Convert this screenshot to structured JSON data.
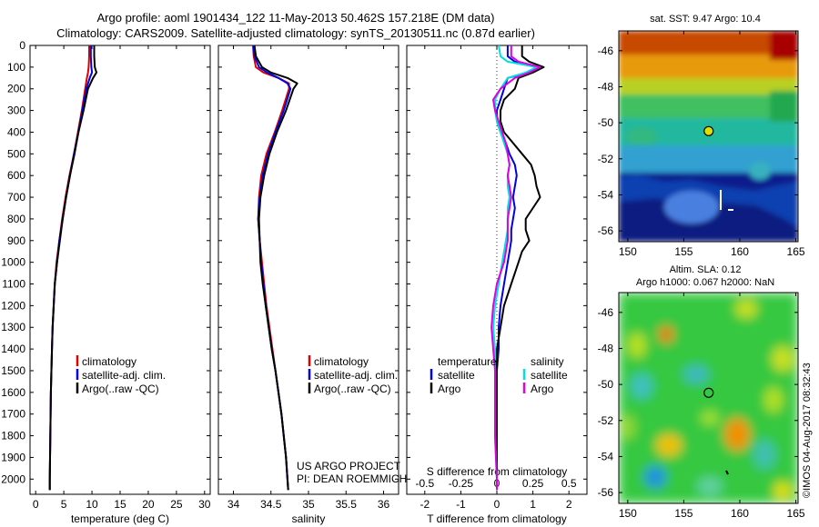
{
  "header": {
    "line1": "Argo profile: aoml 1901434_122 11-May-2013 50.462S 157.218E (DM data)",
    "line2": "Climatology: CARS2009. Satellite-adjusted climatology: synTS_20130511.nc (0.87d earlier)"
  },
  "colors": {
    "climatology": "#e00000",
    "satellite": "#0000e0",
    "argo": "#000000",
    "salinity_satellite": "#00e0e0",
    "salinity_argo": "#e000e0"
  },
  "legend": {
    "climatology": "climatology",
    "satellite_adj": "satellite-adj. clim.",
    "argo": "Argo(..raw -QC)",
    "temperature_head": "temperature",
    "salinity_head": "salinity",
    "satellite": "satellite",
    "argo_short": "Argo"
  },
  "credits": {
    "line1": "US ARGO PROJECT",
    "line2": "PI: DEAN ROEMMICH"
  },
  "maps": {
    "sst_title": "sat. SST: 9.47 Argo: 10.4",
    "sla_title1": "Altim. SLA: 0.12",
    "sla_title2": "Argo h1000: 0.067 h2000: NaN",
    "stamp": "©IMOS 04-Aug-2017 08:32:43",
    "lat_ticks": [
      "-46",
      "-48",
      "-50",
      "-52",
      "-54",
      "-56"
    ],
    "lon_ticks": [
      "150",
      "155",
      "160",
      "165"
    ],
    "float_position": {
      "lon": 157.218,
      "lat": -50.462
    }
  },
  "chart_data": [
    {
      "type": "line",
      "id": "temperature",
      "xlabel": "temperature (deg C)",
      "ylabel": "",
      "xlim": [
        -1,
        31
      ],
      "ylim": [
        2070,
        0
      ],
      "xticks": [
        "0",
        "5",
        "10",
        "15",
        "20",
        "25",
        "30"
      ],
      "yticks": [
        "0",
        "100",
        "200",
        "300",
        "400",
        "500",
        "600",
        "700",
        "800",
        "900",
        "1000",
        "1100",
        "1200",
        "1300",
        "1400",
        "1500",
        "1600",
        "1700",
        "1800",
        "1900",
        "2000"
      ],
      "depth": [
        0,
        50,
        100,
        125,
        150,
        200,
        300,
        400,
        500,
        600,
        700,
        800,
        900,
        1000,
        1100,
        1200,
        1300,
        1400,
        1600,
        1800,
        2000,
        2050
      ],
      "series": [
        {
          "name": "climatology",
          "color": "#e00000",
          "values": [
            9.5,
            9.5,
            9.4,
            9.3,
            9.1,
            8.8,
            8.2,
            7.5,
            6.8,
            6.0,
            5.3,
            4.7,
            4.2,
            3.7,
            3.4,
            3.2,
            3.0,
            2.9,
            2.7,
            2.6,
            2.5,
            2.5
          ]
        },
        {
          "name": "satellite-adj. clim.",
          "color": "#0000e0",
          "values": [
            9.8,
            9.8,
            9.9,
            10.0,
            9.6,
            9.0,
            8.3,
            7.6,
            6.8,
            6.1,
            5.4,
            4.8,
            4.2,
            3.8,
            3.4,
            3.2,
            3.0,
            2.9,
            2.7,
            2.6,
            2.5,
            2.5
          ]
        },
        {
          "name": "Argo(..raw -QC)",
          "color": "#000000",
          "values": [
            10.4,
            10.4,
            10.5,
            10.8,
            10.2,
            9.3,
            8.5,
            7.6,
            6.9,
            6.1,
            5.4,
            4.8,
            4.3,
            3.8,
            3.4,
            3.2,
            3.0,
            2.9,
            2.7,
            2.6,
            2.5,
            2.5
          ]
        }
      ]
    },
    {
      "type": "line",
      "id": "salinity",
      "xlabel": "salinity",
      "ylabel": "",
      "xlim": [
        33.8,
        36.2
      ],
      "ylim": [
        2070,
        0
      ],
      "xticks": [
        "34",
        "34.5",
        "35",
        "35.5",
        "36"
      ],
      "depth": [
        0,
        50,
        100,
        125,
        150,
        175,
        200,
        300,
        400,
        500,
        600,
        700,
        800,
        900,
        1000,
        1100,
        1200,
        1300,
        1400,
        1500,
        1600,
        1700,
        1800,
        1900,
        2000,
        2050
      ],
      "series": [
        {
          "name": "climatology",
          "color": "#e00000",
          "values": [
            34.26,
            34.27,
            34.3,
            34.4,
            34.6,
            34.74,
            34.74,
            34.65,
            34.55,
            34.44,
            34.37,
            34.34,
            34.33,
            34.35,
            34.38,
            34.41,
            34.44,
            34.48,
            34.52,
            34.56,
            34.6,
            34.64,
            34.67,
            34.7,
            34.72,
            34.73
          ]
        },
        {
          "name": "satellite-adj. clim.",
          "color": "#0000e0",
          "values": [
            34.27,
            34.28,
            34.34,
            34.45,
            34.6,
            34.72,
            34.76,
            34.67,
            34.56,
            34.46,
            34.39,
            34.35,
            34.33,
            34.35,
            34.37,
            34.4,
            34.43,
            34.47,
            34.51,
            34.56,
            34.6,
            34.64,
            34.67,
            34.7,
            34.72,
            34.73
          ]
        },
        {
          "name": "Argo(..raw -QC)",
          "color": "#000000",
          "values": [
            34.28,
            34.3,
            34.38,
            34.5,
            34.72,
            34.85,
            34.8,
            34.7,
            34.58,
            34.48,
            34.41,
            34.36,
            34.34,
            34.35,
            34.36,
            34.39,
            34.43,
            34.47,
            34.51,
            34.56,
            34.6,
            34.64,
            34.67,
            34.7,
            34.72,
            34.73
          ]
        }
      ]
    },
    {
      "type": "line",
      "id": "difference",
      "xlabel": "T difference from climatology",
      "xlabel2": "S difference from climatology",
      "ylabel": "",
      "xlim": [
        -2.5,
        2.5
      ],
      "ylim": [
        2070,
        0
      ],
      "xticks": [
        "-2",
        "-1",
        "0",
        "1",
        "2"
      ],
      "xticks2": [
        "-0.5",
        "-0.25",
        "0",
        "0.25",
        "0.5"
      ],
      "depth": [
        0,
        50,
        75,
        100,
        125,
        150,
        200,
        250,
        300,
        350,
        400,
        450,
        500,
        550,
        600,
        650,
        700,
        750,
        800,
        850,
        900,
        950,
        1000,
        1100,
        1200,
        1300,
        1400,
        1500,
        1600,
        1800,
        2000,
        2050
      ],
      "series": [
        {
          "name": "temperature satellite",
          "color": "#0000e0",
          "values": [
            0.3,
            0.3,
            0.5,
            1.2,
            0.9,
            0.3,
            0.2,
            0.1,
            0.0,
            0.0,
            0.1,
            0.25,
            0.35,
            0.5,
            0.55,
            0.5,
            0.45,
            0.5,
            0.45,
            0.4,
            0.4,
            0.35,
            0.3,
            0.2,
            0.1,
            0.05,
            0.05,
            0.0,
            0.0,
            0.0,
            0.0,
            0.0
          ]
        },
        {
          "name": "temperature Argo",
          "color": "#000000",
          "values": [
            0.7,
            0.7,
            0.9,
            1.3,
            1.0,
            0.6,
            0.5,
            0.2,
            0.1,
            0.1,
            0.2,
            0.45,
            0.7,
            0.95,
            1.05,
            1.1,
            1.2,
            1.0,
            0.8,
            0.8,
            0.9,
            0.7,
            0.6,
            0.4,
            0.2,
            0.1,
            0.0,
            0.0,
            0.0,
            0.0,
            0.0,
            0.0
          ]
        },
        {
          "name": "salinity satellite",
          "color": "#00e0e0",
          "values": [
            0.05,
            0.1,
            0.3,
            1.1,
            0.8,
            0.3,
            0.1,
            -0.05,
            -0.05,
            0.0,
            0.1,
            0.2,
            0.3,
            0.35,
            0.3,
            0.3,
            0.35,
            0.3,
            0.3,
            0.3,
            0.25,
            0.2,
            0.15,
            0.05,
            -0.05,
            -0.1,
            -0.05,
            -0.05,
            -0.05,
            -0.05,
            0.0,
            0.0
          ]
        },
        {
          "name": "salinity Argo",
          "color": "#e000e0",
          "values": [
            0.4,
            0.4,
            0.6,
            1.2,
            0.9,
            0.5,
            0.1,
            -0.1,
            -0.05,
            0.05,
            0.15,
            0.25,
            0.3,
            0.35,
            0.3,
            0.35,
            0.4,
            0.35,
            0.3,
            0.3,
            0.3,
            0.25,
            0.2,
            0.0,
            -0.1,
            -0.15,
            -0.1,
            -0.05,
            -0.05,
            -0.05,
            0.0,
            0.0
          ]
        }
      ]
    }
  ]
}
